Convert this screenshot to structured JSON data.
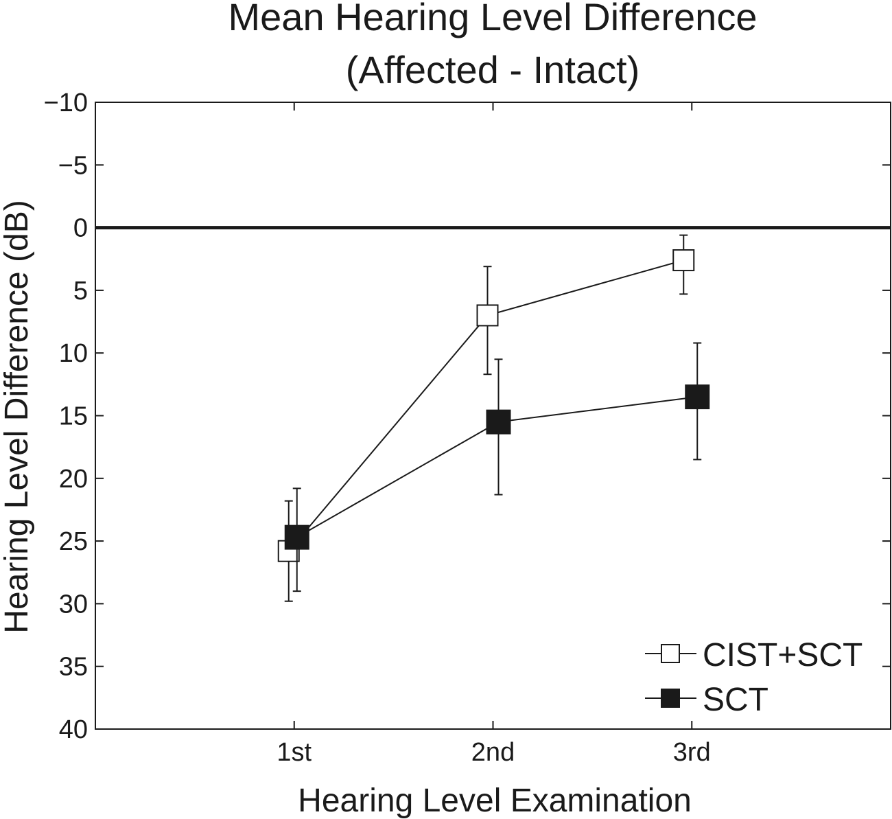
{
  "chart_data": {
    "type": "line",
    "title_lines": [
      "Mean Hearing Level Difference",
      "(Affected - Intact)"
    ],
    "xlabel": "Hearing Level Examination",
    "ylabel": "Hearing Level Difference (dB)",
    "categories": [
      "1st",
      "2nd",
      "3rd"
    ],
    "ylim": [
      -10,
      40
    ],
    "y_reversed": true,
    "yticks": [
      -10,
      -5,
      0,
      5,
      10,
      15,
      20,
      25,
      30,
      35,
      40
    ],
    "ytick_labels": [
      "−10",
      "−5",
      "0",
      "5",
      "10",
      "15",
      "20",
      "25",
      "30",
      "35",
      "40"
    ],
    "reference_line": 0,
    "grid": false,
    "legend_position": "bottom-right",
    "series": [
      {
        "name": "CIST+SCT",
        "marker": "open-square",
        "values": [
          25.8,
          7.0,
          2.6
        ],
        "error_low": [
          21.8,
          3.1,
          0.6
        ],
        "error_high": [
          29.8,
          11.7,
          5.3
        ]
      },
      {
        "name": "SCT",
        "marker": "filled-square",
        "values": [
          24.7,
          15.5,
          13.5
        ],
        "error_low": [
          20.8,
          10.5,
          9.2
        ],
        "error_high": [
          29.0,
          21.3,
          18.5
        ]
      }
    ]
  }
}
